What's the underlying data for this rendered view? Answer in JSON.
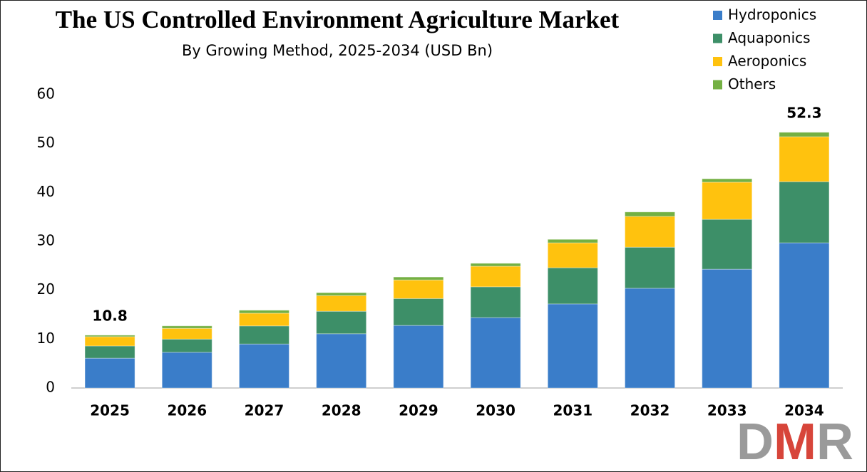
{
  "chart_data": {
    "type": "stacked-bar",
    "title": "The US Controlled Environment Agriculture Market",
    "subtitle": "By Growing Method, 2025-2034 (USD Bn)",
    "categories": [
      "2025",
      "2026",
      "2027",
      "2028",
      "2029",
      "2030",
      "2031",
      "2032",
      "2033",
      "2034"
    ],
    "series": [
      {
        "name": "Hydroponics",
        "color": "#3a7dc9",
        "values": [
          6.1,
          7.3,
          9.0,
          11.1,
          12.8,
          14.4,
          17.2,
          20.4,
          24.3,
          29.7
        ]
      },
      {
        "name": "Aquaponics",
        "color": "#3d8f68",
        "values": [
          2.5,
          2.7,
          3.7,
          4.6,
          5.5,
          6.3,
          7.4,
          8.4,
          10.2,
          12.5
        ]
      },
      {
        "name": "Aeroponics",
        "color": "#ffc20e",
        "values": [
          1.9,
          2.2,
          2.6,
          3.2,
          3.8,
          4.2,
          5.1,
          6.3,
          7.6,
          9.2
        ]
      },
      {
        "name": "Others",
        "color": "#74b043",
        "values": [
          0.3,
          0.5,
          0.6,
          0.6,
          0.6,
          0.6,
          0.7,
          0.9,
          0.7,
          0.9
        ]
      }
    ],
    "annotations": [
      {
        "x": "2025",
        "value": 10.8
      },
      {
        "x": "2034",
        "value": 52.3
      }
    ],
    "ylim": [
      0,
      60
    ],
    "yticks": [
      0,
      10,
      20,
      30,
      40,
      50,
      60
    ],
    "legend": "top-right",
    "logo": "DMR"
  }
}
